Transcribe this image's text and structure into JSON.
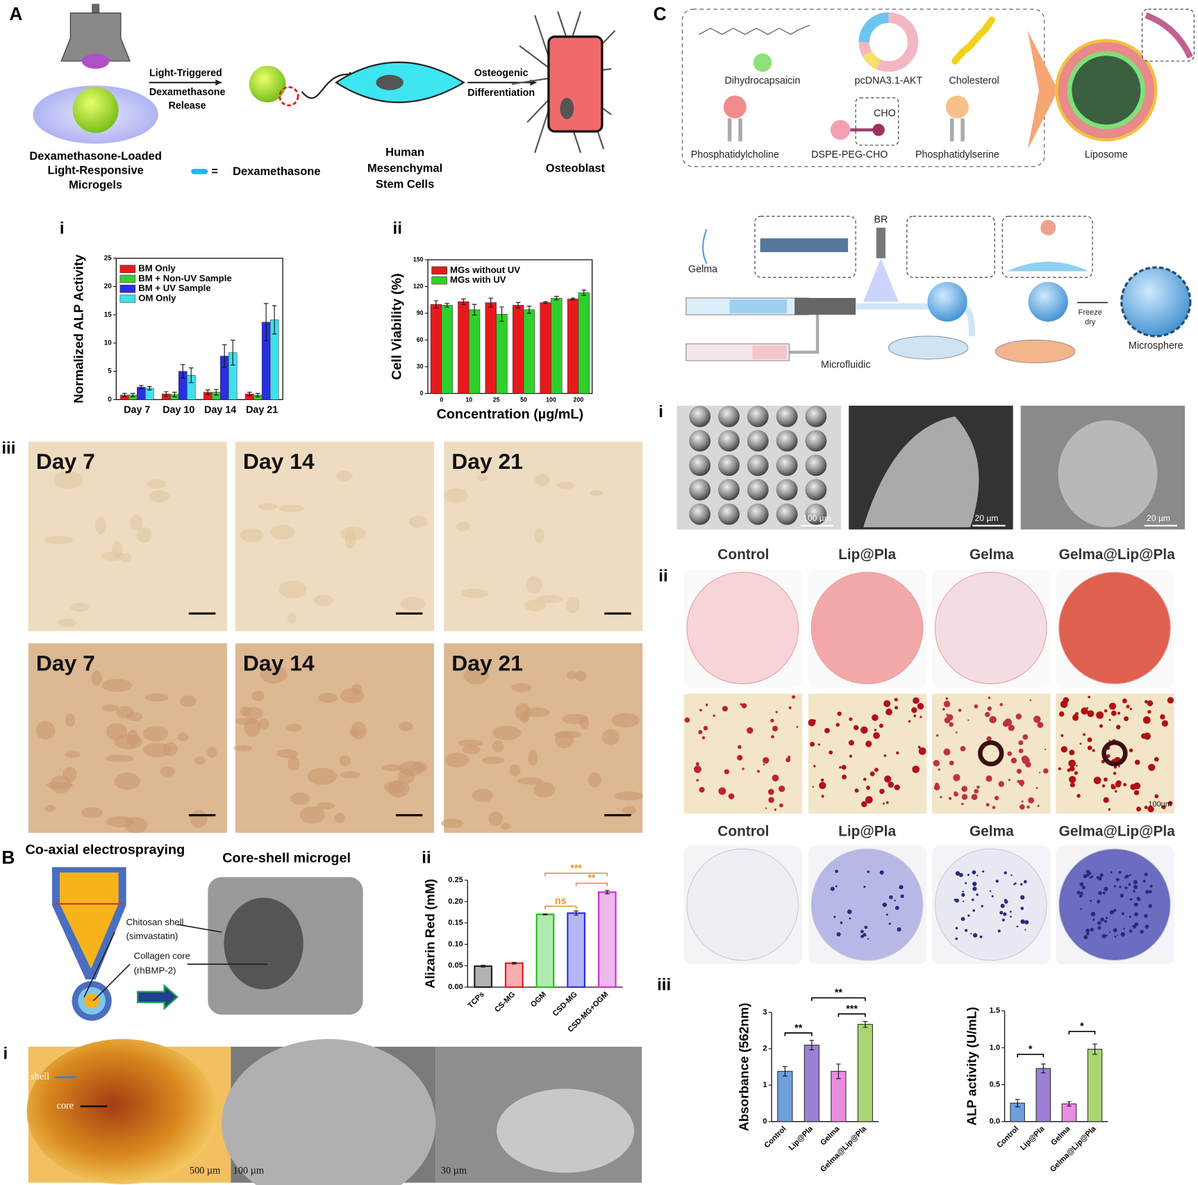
{
  "figure": {
    "panel_a": {
      "letter": "A",
      "diagram_text": [
        "Light-Triggered",
        "Dexamethasone",
        "Release",
        "Osteogenic",
        "Differentiation",
        "Dexamethasone-Loaded",
        "Light-Responsive",
        "Microgels",
        "=",
        "Dexamethasone",
        "Human",
        "Mesenchymal",
        "Stem Cells",
        "Osteoblast"
      ],
      "sub_labels": [
        "i",
        "ii",
        "iii"
      ],
      "photo_labels": [
        "Day 7",
        "Day 14",
        "Day 21",
        "Day 7",
        "Day 14",
        "Day 21"
      ]
    },
    "panel_b": {
      "letter": "B",
      "diagram_text": [
        "Co-axial electrospraying",
        "Core-shell microgel",
        "Chitosan shell",
        "(simvastatin)",
        "Collagen core",
        "(rhBMP-2)",
        "shell",
        "core"
      ],
      "sub_labels": [
        "ii",
        "i"
      ],
      "scale_bars": [
        "500 µm",
        "100 µm",
        "30 µm"
      ]
    },
    "panel_c": {
      "letter": "C",
      "molecules": [
        "Dihydrocapsaicin",
        "pcDNA3.1-AKT",
        "Cholesterol",
        "Phosphatidylcholine",
        "DSPE-PEG-CHO",
        "Phosphatidylserine"
      ],
      "diagram_text": [
        "CHO",
        "Liposome",
        "Gelma",
        "BR",
        "Freeze",
        "dry",
        "Microfluidic",
        "Microsphere"
      ],
      "sub_labels": [
        "i",
        "ii",
        "iii"
      ],
      "scale_bars": [
        "100 µm",
        "20 µm",
        "20 µm",
        "100µm"
      ],
      "groups": [
        "Control",
        "Lip@Pla",
        "Gelma",
        "Gelma@Lip@Pla"
      ]
    }
  },
  "chart_data": [
    {
      "type": "bar",
      "ylabel": "Normalized ALP Activity",
      "categories": [
        "Day 7",
        "Day 10",
        "Day 14",
        "Day 21"
      ],
      "series": [
        {
          "name": "BM Only",
          "color": "#e8191c",
          "values": [
            0.8,
            1.0,
            1.3,
            1.0
          ],
          "errors": [
            0.3,
            0.4,
            0.4,
            0.3
          ]
        },
        {
          "name": "BM + Non-UV Sample",
          "color": "#3fc93a",
          "values": [
            0.8,
            0.9,
            1.3,
            0.8
          ],
          "errors": [
            0.3,
            0.4,
            0.5,
            0.3
          ]
        },
        {
          "name": "BM + UV Sample",
          "color": "#2a2ee0",
          "values": [
            2.2,
            5.0,
            7.7,
            13.7
          ],
          "errors": [
            0.3,
            1.2,
            2.0,
            3.3
          ]
        },
        {
          "name": "OM Only",
          "color": "#3fe0e8",
          "values": [
            2.0,
            4.3,
            8.3,
            14.1
          ],
          "errors": [
            0.3,
            1.3,
            2.2,
            2.5
          ]
        }
      ],
      "ylim": [
        0,
        25
      ],
      "yticks": [
        0,
        5,
        10,
        15,
        20,
        25
      ],
      "legend": "upper left"
    },
    {
      "type": "bar",
      "ylabel": "Cell Viability (%)",
      "xlabel": "Concentration (µg/mL)",
      "categories": [
        "0",
        "10",
        "25",
        "50",
        "100",
        "200"
      ],
      "series": [
        {
          "name": "MGs without UV",
          "color": "#e8191c",
          "values": [
            100,
            103,
            102,
            99,
            102,
            106
          ],
          "errors": [
            4,
            3,
            5,
            3,
            1,
            1
          ]
        },
        {
          "name": "MGs with UV",
          "color": "#2ed12b",
          "values": [
            99,
            94,
            89,
            94,
            107,
            113
          ],
          "errors": [
            2,
            6,
            8,
            4,
            2,
            3
          ]
        }
      ],
      "ylim": [
        0,
        150
      ],
      "yticks": [
        0,
        30,
        60,
        90,
        120,
        150
      ],
      "legend": "upper left"
    },
    {
      "type": "bar",
      "ylabel": "Alizarin Red (mM)",
      "categories": [
        "TCPs",
        "CS-MG",
        "OGM",
        "CSD-MG",
        "CSD-MG+OGM"
      ],
      "values": [
        0.049,
        0.056,
        0.17,
        0.173,
        0.222
      ],
      "errors": [
        0.002,
        0.002,
        0.001,
        0.005,
        0.004
      ],
      "colors": [
        "#222222",
        "#e8191c",
        "#1fc21c",
        "#2a2ee0",
        "#cc33cc"
      ],
      "ylim": [
        0,
        0.25
      ],
      "yticks": [
        {
          "value": 0,
          "label": "0.00"
        },
        0.05,
        {
          "value": 0.1,
          "label": "0.10"
        },
        0.15,
        {
          "value": 0.2,
          "label": "0.20"
        },
        0.25
      ],
      "annotations": [
        "***",
        "**",
        "ns"
      ],
      "annotation_color": "#e8962d"
    },
    {
      "type": "bar",
      "ylabel": "Absorbance (562nm)",
      "categories": [
        "Control",
        "Lip@Pla",
        "Gelma",
        "Gelma@Lip@Pla"
      ],
      "values": [
        1.38,
        2.1,
        1.38,
        2.67
      ],
      "errors": [
        0.13,
        0.13,
        0.2,
        0.08
      ],
      "colors": [
        "#6fa0dc",
        "#9d80d6",
        "#e88de2",
        "#a9d673"
      ],
      "ylim": [
        0,
        3
      ],
      "yticks": [
        0,
        1,
        2,
        3
      ],
      "annotations": [
        "**",
        "**",
        "***"
      ],
      "annotation_color": "#000000"
    },
    {
      "type": "bar",
      "ylabel": "ALP activity (U/mL)",
      "categories": [
        "Control",
        "Lip@Pla",
        "Gelma",
        "Gelma@Lip@Pla"
      ],
      "values": [
        0.25,
        0.72,
        0.24,
        0.98
      ],
      "errors": [
        0.05,
        0.06,
        0.03,
        0.07
      ],
      "colors": [
        "#6fa0dc",
        "#9d80d6",
        "#e88de2",
        "#a9d673"
      ],
      "ylim": [
        0,
        1.5
      ],
      "yticks": [
        {
          "value": 0,
          "label": "0.0"
        },
        0.5,
        {
          "value": 1,
          "label": "1.0"
        },
        1.5
      ],
      "annotations": [
        "*",
        "*"
      ],
      "annotation_color": "#000000"
    }
  ]
}
